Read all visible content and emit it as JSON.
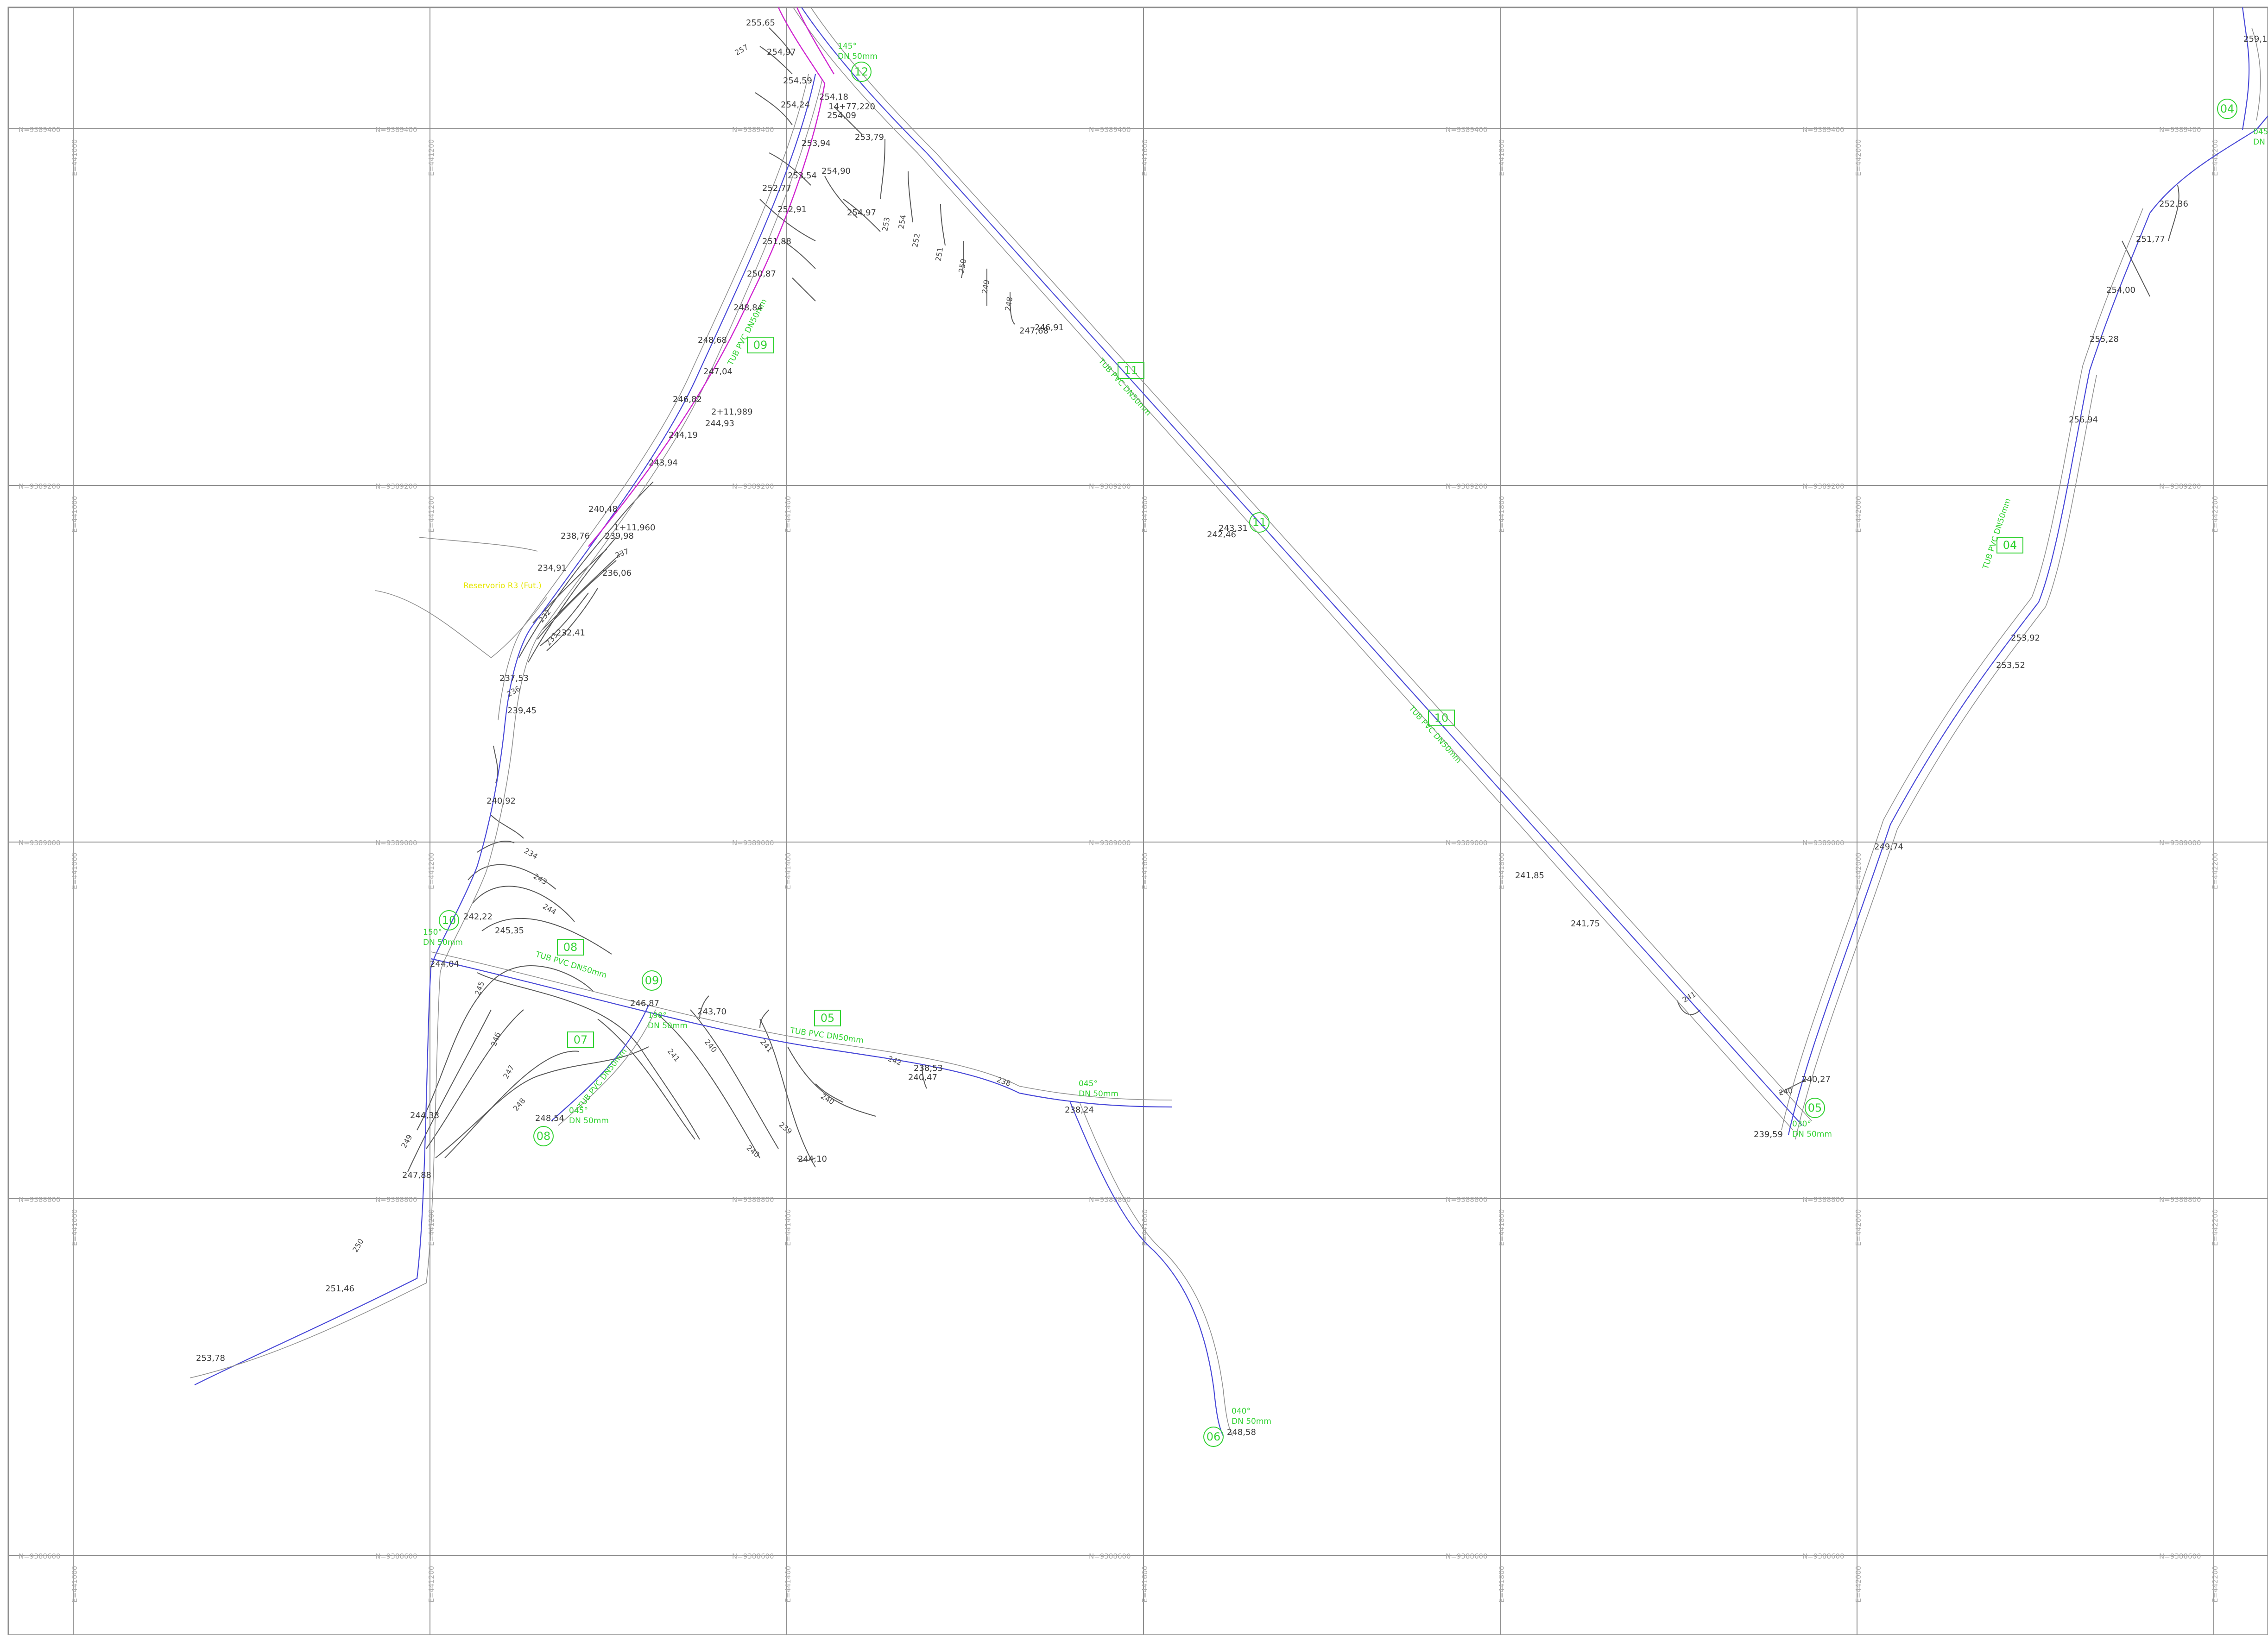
{
  "grid": {
    "northing_labels": [
      "N=9389400",
      "N=9389200",
      "N=9389000",
      "N=9388800",
      "N=9388600"
    ],
    "easting_labels": [
      "E=441000",
      "E=441200",
      "E=441400",
      "E=441600",
      "E=441800",
      "E=442000",
      "E=442200"
    ]
  },
  "colors": {
    "pipe": "#4a4ad8",
    "junction_text": "#32d232",
    "highlight_route": "#d024d0",
    "annotation_yellow": "#e6e600",
    "grid": "#8f8f8f"
  },
  "section_tags": [
    "09",
    "11",
    "10",
    "04",
    "08",
    "05",
    "07"
  ],
  "node_circles": [
    "12",
    "11",
    "04",
    "10",
    "09",
    "05",
    "08",
    "06"
  ],
  "junction_labels": [
    {
      "deg": "145°",
      "dn": "DN 50mm"
    },
    {
      "deg": "150°",
      "dn": "DN 50mm"
    },
    {
      "deg": "190°",
      "dn": "DN 50mm"
    },
    {
      "deg": "045°",
      "dn": "DN 50mm"
    },
    {
      "deg": "045°",
      "dn": "DN 50mm"
    },
    {
      "deg": "030°",
      "dn": "DN 50mm"
    },
    {
      "deg": "040°",
      "dn": "DN 50mm"
    },
    {
      "deg": "045°",
      "dn": "DN 50mm"
    }
  ],
  "elevations": [
    "255,65",
    "254,97",
    "254,59",
    "254,24",
    "254,18",
    "254,09",
    "253,79",
    "253,94",
    "253,54",
    "254,90",
    "254,97",
    "252,77",
    "252,91",
    "251,88",
    "250,87",
    "248,84",
    "248,68",
    "247,04",
    "246,82",
    "244,19",
    "244,93",
    "243,94",
    "240,48",
    "239,98",
    "238,76",
    "234,91",
    "236,06",
    "232,41",
    "237,53",
    "239,45",
    "240,92",
    "242,22",
    "245,35",
    "244,04",
    "246,87",
    "243,70",
    "238,53",
    "240,47",
    "238,24",
    "244,10",
    "248,54",
    "244,38",
    "247,88",
    "251,46",
    "253,78",
    "248,58",
    "247,68",
    "246,91",
    "242,46",
    "243,31",
    "241,85",
    "241,75",
    "240,27",
    "239,59",
    "249,74",
    "253,52",
    "253,92",
    "256,94",
    "255,28",
    "254,00",
    "251,77",
    "252,36",
    "259,1",
    "244,38"
  ],
  "contour_labels": [
    "257",
    "254",
    "253",
    "252",
    "251",
    "250",
    "249",
    "248",
    "237",
    "232",
    "233",
    "236",
    "234",
    "243",
    "244",
    "245",
    "246",
    "247",
    "248",
    "249",
    "250",
    "241",
    "240",
    "239",
    "238",
    "242"
  ],
  "chainage_labels": [
    "14+77,220",
    "2+11,989",
    "1+11,960"
  ],
  "yellow_note": "Reservorio R3 (Fut.)",
  "pipe_labels": [
    "TUB PVC DN50mm",
    "TUB PVC DN50mm",
    "TUB PVC DN50mm",
    "TUB PVC DN50mm",
    "TUB PVC DN50mm",
    "TUB PVC DN50mm",
    "TUB PVC DN50mm"
  ]
}
